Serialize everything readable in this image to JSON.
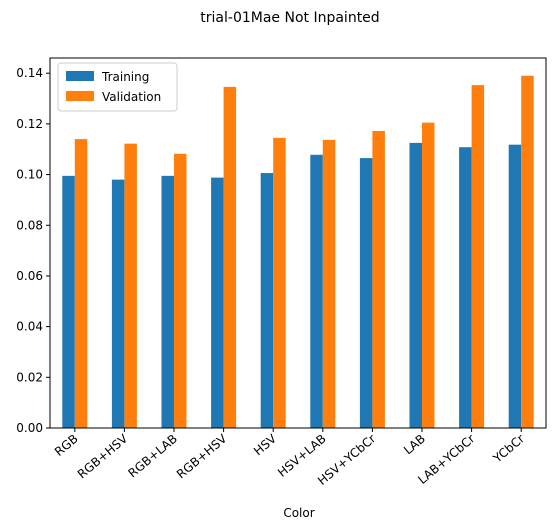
{
  "chart_data": {
    "type": "bar",
    "title": "trial-01Mae Not Inpainted",
    "xlabel": "Color",
    "ylabel": "",
    "categories": [
      "RGB",
      "RGB+HSV",
      "RGB+LAB",
      "RGB+HSV",
      "HSV",
      "HSV+LAB",
      "HSV+YCbCr",
      "LAB",
      "LAB+YCbCr",
      "YCbCr"
    ],
    "series": [
      {
        "name": "Training",
        "color": "#1f77b4",
        "values": [
          0.0995,
          0.098,
          0.0995,
          0.0988,
          0.1006,
          0.1078,
          0.1065,
          0.1125,
          0.1108,
          0.1118
        ]
      },
      {
        "name": "Validation",
        "color": "#ff7f0e",
        "values": [
          0.114,
          0.1122,
          0.1082,
          0.1346,
          0.1145,
          0.1137,
          0.1172,
          0.1205,
          0.1353,
          0.139
        ]
      }
    ],
    "ylim": [
      0,
      0.146
    ],
    "yticks": [
      "0.00",
      "0.02",
      "0.04",
      "0.06",
      "0.08",
      "0.10",
      "0.12",
      "0.14"
    ],
    "legend": "top-left",
    "grid": false
  }
}
